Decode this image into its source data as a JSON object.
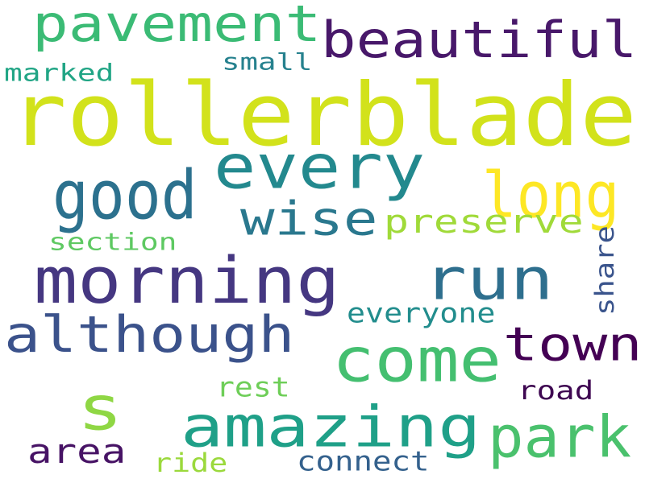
{
  "words": [
    {
      "text": "rollerblade",
      "color": "#d2e21b"
    },
    {
      "text": "pavement",
      "color": "#3bbb75"
    },
    {
      "text": "beautiful",
      "color": "#48186a"
    },
    {
      "text": "small",
      "color": "#26818e"
    },
    {
      "text": "marked",
      "color": "#21a585"
    },
    {
      "text": "every",
      "color": "#23898e"
    },
    {
      "text": "good",
      "color": "#2c718e"
    },
    {
      "text": "long",
      "color": "#fde725"
    },
    {
      "text": "wise",
      "color": "#2a788e"
    },
    {
      "text": "preserve",
      "color": "#a0da39"
    },
    {
      "text": "section",
      "color": "#5ec962"
    },
    {
      "text": "morning",
      "color": "#453781"
    },
    {
      "text": "run",
      "color": "#2e6f8e"
    },
    {
      "text": "share",
      "color": "#3a548c"
    },
    {
      "text": "although",
      "color": "#3b528b"
    },
    {
      "text": "everyone",
      "color": "#228d8d"
    },
    {
      "text": "come",
      "color": "#44bf70"
    },
    {
      "text": "town",
      "color": "#440154"
    },
    {
      "text": "s",
      "color": "#8fd744"
    },
    {
      "text": "rest",
      "color": "#6ece58"
    },
    {
      "text": "amazing",
      "color": "#1fa088"
    },
    {
      "text": "road",
      "color": "#3e0751"
    },
    {
      "text": "park",
      "color": "#4ac16d"
    },
    {
      "text": "area",
      "color": "#471365"
    },
    {
      "text": "connect",
      "color": "#34618d"
    },
    {
      "text": "ride",
      "color": "#9bd93c"
    }
  ]
}
